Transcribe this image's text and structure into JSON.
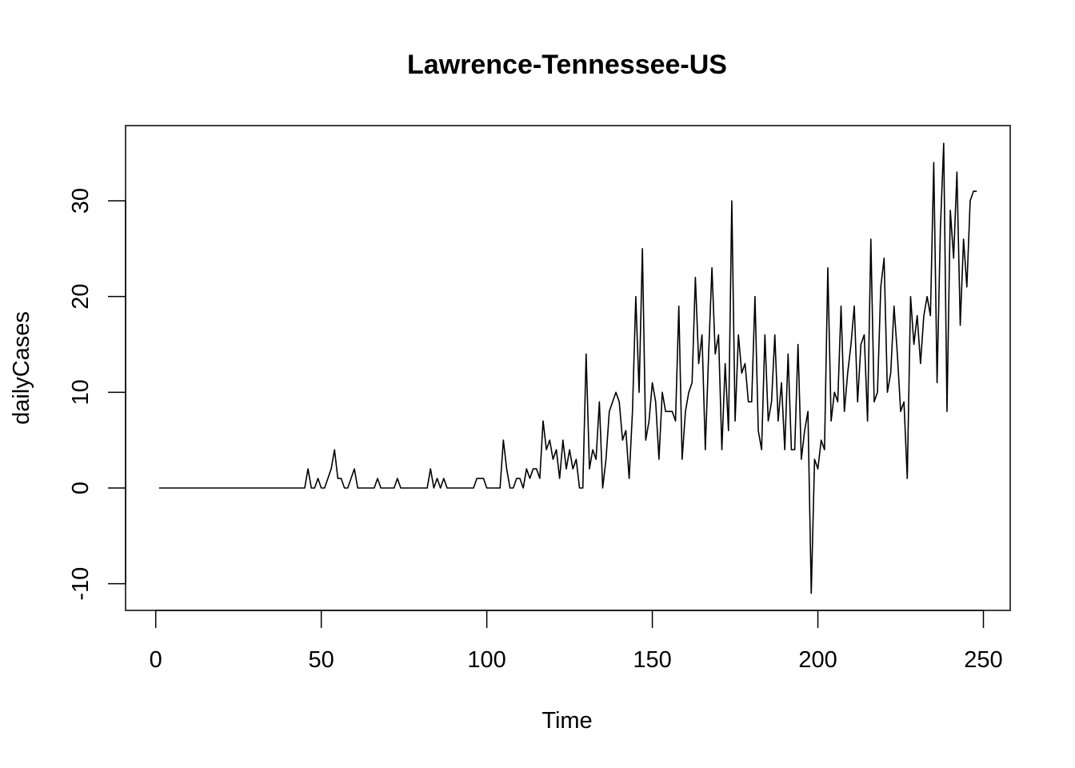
{
  "chart_data": {
    "type": "line",
    "title": "Lawrence-Tennessee-US",
    "xlabel": "Time",
    "ylabel": "dailyCases",
    "xlim": [
      1,
      248
    ],
    "ylim": [
      -11,
      36
    ],
    "x_ticks": [
      0,
      50,
      100,
      150,
      200,
      250
    ],
    "y_ticks": [
      -10,
      0,
      10,
      20,
      30
    ],
    "grid": false,
    "legend": "none",
    "line_color": "#000000",
    "x_start": 1,
    "series": [
      {
        "values": [
          0,
          0,
          0,
          0,
          0,
          0,
          0,
          0,
          0,
          0,
          0,
          0,
          0,
          0,
          0,
          0,
          0,
          0,
          0,
          0,
          0,
          0,
          0,
          0,
          0,
          0,
          0,
          0,
          0,
          0,
          0,
          0,
          0,
          0,
          0,
          0,
          0,
          0,
          0,
          0,
          0,
          0,
          0,
          0,
          0,
          2,
          0,
          0,
          1,
          0,
          0,
          1,
          2,
          4,
          1,
          1,
          0,
          0,
          1,
          2,
          0,
          0,
          0,
          0,
          0,
          0,
          1,
          0,
          0,
          0,
          0,
          0,
          1,
          0,
          0,
          0,
          0,
          0,
          0,
          0,
          0,
          0,
          2,
          0,
          1,
          0,
          1,
          0,
          0,
          0,
          0,
          0,
          0,
          0,
          0,
          0,
          1,
          1,
          1,
          0,
          0,
          0,
          0,
          0,
          5,
          2,
          0,
          0,
          1,
          1,
          0,
          2,
          1,
          2,
          2,
          1,
          7,
          4,
          5,
          3,
          4,
          1,
          5,
          2,
          4,
          2,
          3,
          0,
          0,
          14,
          2,
          4,
          3,
          9,
          0,
          3,
          8,
          9,
          10,
          9,
          5,
          6,
          1,
          8,
          20,
          10,
          25,
          5,
          7,
          11,
          9,
          3,
          10,
          8,
          8,
          8,
          7,
          19,
          3,
          8,
          10,
          11,
          22,
          13,
          16,
          4,
          14,
          23,
          14,
          16,
          4,
          13,
          6,
          30,
          7,
          16,
          12,
          13,
          9,
          9,
          20,
          6,
          4,
          16,
          7,
          9,
          16,
          7,
          11,
          4,
          14,
          4,
          4,
          15,
          3,
          6,
          8,
          -11,
          3,
          2,
          5,
          4,
          23,
          7,
          10,
          9,
          19,
          8,
          12,
          15,
          19,
          9,
          15,
          16,
          7,
          26,
          9,
          10,
          21,
          24,
          10,
          12,
          19,
          14,
          8,
          9,
          1,
          20,
          15,
          18,
          13,
          18,
          20,
          18,
          34,
          11,
          27,
          36,
          8,
          29,
          24,
          33,
          17,
          26,
          21,
          30,
          31,
          31
        ]
      }
    ]
  }
}
